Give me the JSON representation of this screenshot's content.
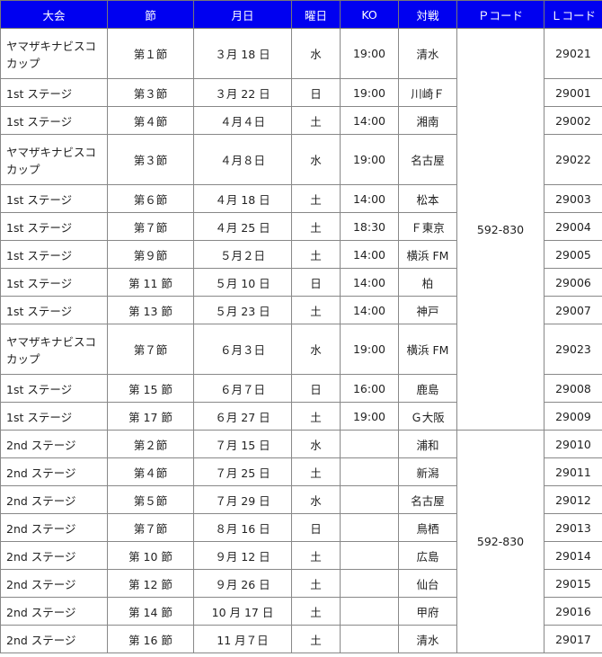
{
  "header_color": "#0000f0",
  "headers": [
    "大会",
    "節",
    "月日",
    "曜日",
    "KO",
    "対戦",
    "Ｐコード",
    "Ｌコード"
  ],
  "pcodes": [
    "592-830",
    "592-830"
  ],
  "rows": [
    {
      "cup": "ヤマザキナビスコカップ",
      "sec": "第１節",
      "date": "３月 18 日",
      "day": "水",
      "ko": "19:00",
      "vs": "清水",
      "lcode": "29021"
    },
    {
      "cup": "1st ステージ",
      "sec": "第３節",
      "date": "３月 22 日",
      "day": "日",
      "ko": "19:00",
      "vs": "川崎Ｆ",
      "lcode": "29001"
    },
    {
      "cup": "1st ステージ",
      "sec": "第４節",
      "date": "４月４日",
      "day": "土",
      "ko": "14:00",
      "vs": "湘南",
      "lcode": "29002"
    },
    {
      "cup": "ヤマザキナビスコカップ",
      "sec": "第３節",
      "date": "４月８日",
      "day": "水",
      "ko": "19:00",
      "vs": "名古屋",
      "lcode": "29022"
    },
    {
      "cup": "1st ステージ",
      "sec": "第６節",
      "date": "４月 18 日",
      "day": "土",
      "ko": "14:00",
      "vs": "松本",
      "lcode": "29003"
    },
    {
      "cup": "1st ステージ",
      "sec": "第７節",
      "date": "４月 25 日",
      "day": "土",
      "ko": "18:30",
      "vs": "Ｆ東京",
      "lcode": "29004"
    },
    {
      "cup": "1st ステージ",
      "sec": "第９節",
      "date": "５月２日",
      "day": "土",
      "ko": "14:00",
      "vs": "横浜 FM",
      "lcode": "29005"
    },
    {
      "cup": "1st ステージ",
      "sec": "第 11 節",
      "date": "５月 10 日",
      "day": "日",
      "ko": "14:00",
      "vs": "柏",
      "lcode": "29006"
    },
    {
      "cup": "1st ステージ",
      "sec": "第 13 節",
      "date": "５月 23 日",
      "day": "土",
      "ko": "14:00",
      "vs": "神戸",
      "lcode": "29007"
    },
    {
      "cup": "ヤマザキナビスコカップ",
      "sec": "第７節",
      "date": "６月３日",
      "day": "水",
      "ko": "19:00",
      "vs": "横浜 FM",
      "lcode": "29023"
    },
    {
      "cup": "1st ステージ",
      "sec": "第 15 節",
      "date": "６月７日",
      "day": "日",
      "ko": "16:00",
      "vs": "鹿島",
      "lcode": "29008"
    },
    {
      "cup": "1st ステージ",
      "sec": "第 17 節",
      "date": "６月 27 日",
      "day": "土",
      "ko": "19:00",
      "vs": "Ｇ大阪",
      "lcode": "29009"
    },
    {
      "cup": "2nd ステージ",
      "sec": "第２節",
      "date": "７月 15 日",
      "day": "水",
      "ko": "",
      "vs": "浦和",
      "lcode": "29010"
    },
    {
      "cup": "2nd ステージ",
      "sec": "第４節",
      "date": "７月 25 日",
      "day": "土",
      "ko": "",
      "vs": "新潟",
      "lcode": "29011"
    },
    {
      "cup": "2nd ステージ",
      "sec": "第５節",
      "date": "７月 29 日",
      "day": "水",
      "ko": "",
      "vs": "名古屋",
      "lcode": "29012"
    },
    {
      "cup": "2nd ステージ",
      "sec": "第７節",
      "date": "８月 16 日",
      "day": "日",
      "ko": "",
      "vs": "鳥栖",
      "lcode": "29013"
    },
    {
      "cup": "2nd ステージ",
      "sec": "第 10 節",
      "date": "９月 12 日",
      "day": "土",
      "ko": "",
      "vs": "広島",
      "lcode": "29014"
    },
    {
      "cup": "2nd ステージ",
      "sec": "第 12 節",
      "date": "９月 26 日",
      "day": "土",
      "ko": "",
      "vs": "仙台",
      "lcode": "29015"
    },
    {
      "cup": "2nd ステージ",
      "sec": "第 14 節",
      "date": "10 月 17 日",
      "day": "土",
      "ko": "",
      "vs": "甲府",
      "lcode": "29016"
    },
    {
      "cup": "2nd ステージ",
      "sec": "第 16 節",
      "date": "11 月７日",
      "day": "土",
      "ko": "",
      "vs": "清水",
      "lcode": "29017"
    }
  ]
}
